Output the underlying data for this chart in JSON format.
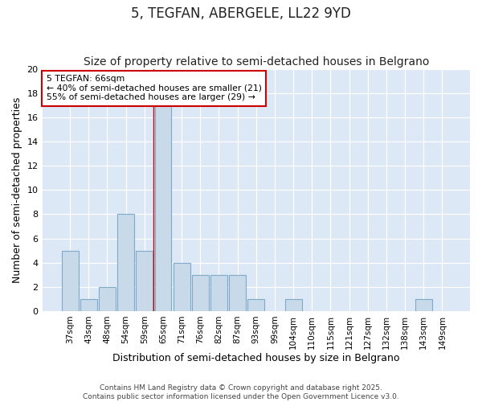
{
  "title": "5, TEGFAN, ABERGELE, LL22 9YD",
  "subtitle": "Size of property relative to semi-detached houses in Belgrano",
  "xlabel": "Distribution of semi-detached houses by size in Belgrano",
  "ylabel": "Number of semi-detached properties",
  "categories": [
    "37sqm",
    "43sqm",
    "48sqm",
    "54sqm",
    "59sqm",
    "65sqm",
    "71sqm",
    "76sqm",
    "82sqm",
    "87sqm",
    "93sqm",
    "99sqm",
    "104sqm",
    "110sqm",
    "115sqm",
    "121sqm",
    "127sqm",
    "132sqm",
    "138sqm",
    "143sqm",
    "149sqm"
  ],
  "values": [
    5,
    1,
    2,
    8,
    5,
    17,
    4,
    3,
    3,
    3,
    1,
    0,
    1,
    0,
    0,
    0,
    0,
    0,
    0,
    1,
    0
  ],
  "bar_color": "#c8d9ea",
  "bar_edge_color": "#7faac8",
  "subject_bar_index": 5,
  "subject_line_color": "#cc0000",
  "ylim": [
    0,
    20
  ],
  "yticks": [
    0,
    2,
    4,
    6,
    8,
    10,
    12,
    14,
    16,
    18,
    20
  ],
  "annotation_text": "5 TEGFAN: 66sqm\n← 40% of semi-detached houses are smaller (21)\n55% of semi-detached houses are larger (29) →",
  "annotation_box_color": "#ffffff",
  "annotation_box_edge": "#cc0000",
  "footer_text": "Contains HM Land Registry data © Crown copyright and database right 2025.\nContains public sector information licensed under the Open Government Licence v3.0.",
  "fig_bg_color": "#ffffff",
  "axes_bg_color": "#dce8f5",
  "grid_color": "#ffffff",
  "title_fontsize": 12,
  "subtitle_fontsize": 10,
  "tick_fontsize": 7.5,
  "ylabel_fontsize": 9,
  "xlabel_fontsize": 9,
  "footer_fontsize": 6.5
}
